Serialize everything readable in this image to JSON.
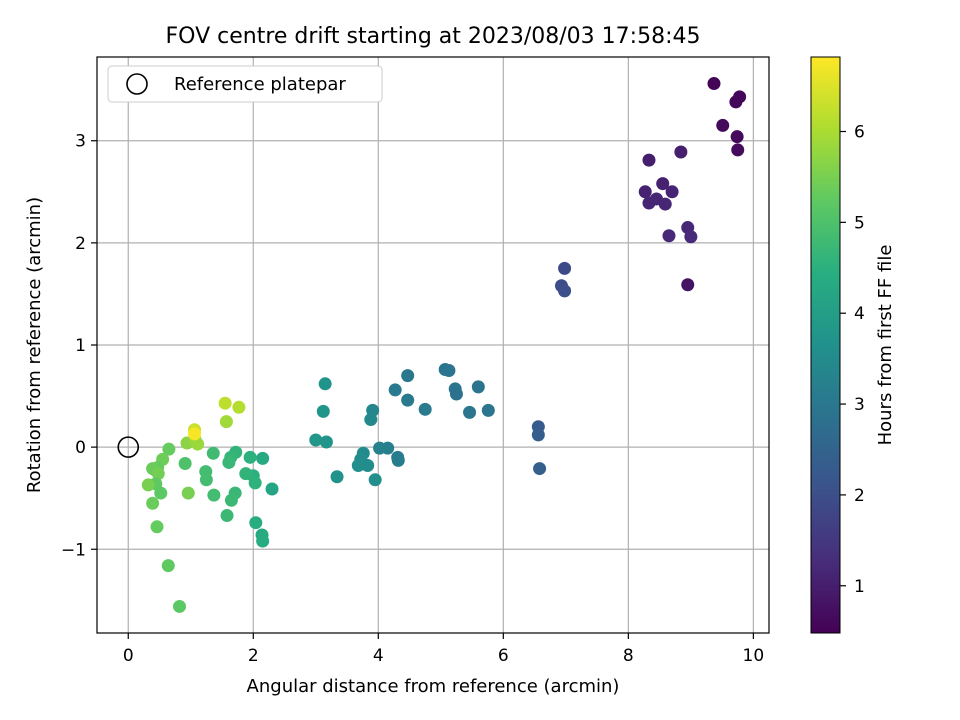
{
  "chart_data": {
    "type": "scatter",
    "title": "FOV centre drift starting at 2023/08/03 17:58:45",
    "xlabel": "Angular distance from reference (arcmin)",
    "ylabel": "Rotation from reference (arcmin)",
    "xlim": [
      -0.5,
      10.25
    ],
    "ylim": [
      -1.82,
      3.82
    ],
    "xticks": [
      0,
      2,
      4,
      6,
      8,
      10
    ],
    "xtick_labels": [
      "0",
      "2",
      "4",
      "6",
      "8",
      "10"
    ],
    "yticks": [
      -1,
      0,
      1,
      2,
      3
    ],
    "ytick_labels": [
      "−1",
      "0",
      "1",
      "2",
      "3"
    ],
    "grid": true,
    "legend": {
      "position": "top-left",
      "label": "Reference platepar"
    },
    "reference_point": {
      "x": 0,
      "y": 0
    },
    "colorbar": {
      "label": "Hours from first FF file",
      "colormap": "viridis",
      "range": [
        0.48,
        6.82
      ],
      "ticks": [
        1,
        2,
        3,
        4,
        5,
        6
      ],
      "tick_labels": [
        "1",
        "2",
        "3",
        "4",
        "5",
        "6"
      ]
    },
    "points": [
      {
        "x": 9.37,
        "y": 3.56,
        "c": 0.55
      },
      {
        "x": 9.78,
        "y": 3.43,
        "c": 0.58
      },
      {
        "x": 9.72,
        "y": 3.38,
        "c": 0.6
      },
      {
        "x": 9.51,
        "y": 3.15,
        "c": 0.62
      },
      {
        "x": 9.74,
        "y": 3.04,
        "c": 0.64
      },
      {
        "x": 9.75,
        "y": 2.91,
        "c": 0.66
      },
      {
        "x": 8.33,
        "y": 2.81,
        "c": 1.0
      },
      {
        "x": 8.84,
        "y": 2.89,
        "c": 1.02
      },
      {
        "x": 8.55,
        "y": 2.58,
        "c": 1.05
      },
      {
        "x": 8.27,
        "y": 2.5,
        "c": 1.08
      },
      {
        "x": 8.7,
        "y": 2.5,
        "c": 1.1
      },
      {
        "x": 8.45,
        "y": 2.43,
        "c": 1.12
      },
      {
        "x": 8.33,
        "y": 2.39,
        "c": 1.14
      },
      {
        "x": 8.59,
        "y": 2.38,
        "c": 1.16
      },
      {
        "x": 8.95,
        "y": 2.15,
        "c": 1.18
      },
      {
        "x": 8.65,
        "y": 2.07,
        "c": 1.2
      },
      {
        "x": 9.0,
        "y": 2.06,
        "c": 1.22
      },
      {
        "x": 8.95,
        "y": 1.59,
        "c": 0.8
      },
      {
        "x": 6.98,
        "y": 1.75,
        "c": 1.9
      },
      {
        "x": 6.93,
        "y": 1.58,
        "c": 1.95
      },
      {
        "x": 6.98,
        "y": 1.53,
        "c": 2.0
      },
      {
        "x": 6.56,
        "y": 0.2,
        "c": 2.3
      },
      {
        "x": 6.56,
        "y": 0.12,
        "c": 2.35
      },
      {
        "x": 6.58,
        "y": -0.21,
        "c": 2.4
      },
      {
        "x": 5.07,
        "y": 0.76,
        "c": 2.9
      },
      {
        "x": 5.13,
        "y": 0.75,
        "c": 2.95
      },
      {
        "x": 5.23,
        "y": 0.57,
        "c": 2.9
      },
      {
        "x": 5.25,
        "y": 0.52,
        "c": 2.85
      },
      {
        "x": 5.6,
        "y": 0.59,
        "c": 2.9
      },
      {
        "x": 5.46,
        "y": 0.34,
        "c": 2.95
      },
      {
        "x": 5.76,
        "y": 0.36,
        "c": 2.95
      },
      {
        "x": 4.47,
        "y": 0.7,
        "c": 3.0
      },
      {
        "x": 4.27,
        "y": 0.56,
        "c": 3.05
      },
      {
        "x": 4.47,
        "y": 0.46,
        "c": 3.05
      },
      {
        "x": 4.75,
        "y": 0.37,
        "c": 3.1
      },
      {
        "x": 4.31,
        "y": -0.1,
        "c": 3.1
      },
      {
        "x": 4.32,
        "y": -0.13,
        "c": 3.15
      },
      {
        "x": 4.15,
        "y": -0.01,
        "c": 3.2
      },
      {
        "x": 4.02,
        "y": -0.01,
        "c": 3.25
      },
      {
        "x": 3.91,
        "y": 0.36,
        "c": 3.4
      },
      {
        "x": 3.88,
        "y": 0.27,
        "c": 3.45
      },
      {
        "x": 3.76,
        "y": -0.06,
        "c": 3.5
      },
      {
        "x": 3.72,
        "y": -0.12,
        "c": 3.55
      },
      {
        "x": 3.68,
        "y": -0.18,
        "c": 3.6
      },
      {
        "x": 3.83,
        "y": -0.18,
        "c": 3.55
      },
      {
        "x": 3.95,
        "y": -0.32,
        "c": 3.6
      },
      {
        "x": 3.15,
        "y": 0.62,
        "c": 3.7
      },
      {
        "x": 3.12,
        "y": 0.35,
        "c": 3.75
      },
      {
        "x": 3.0,
        "y": 0.07,
        "c": 3.8
      },
      {
        "x": 3.17,
        "y": 0.05,
        "c": 3.75
      },
      {
        "x": 3.34,
        "y": -0.29,
        "c": 3.7
      },
      {
        "x": 2.3,
        "y": -0.41,
        "c": 4.2
      },
      {
        "x": 2.15,
        "y": -0.11,
        "c": 4.3
      },
      {
        "x": 2.14,
        "y": -0.86,
        "c": 4.3
      },
      {
        "x": 2.15,
        "y": -0.92,
        "c": 4.35
      },
      {
        "x": 2.04,
        "y": -0.74,
        "c": 4.4
      },
      {
        "x": 1.95,
        "y": -0.1,
        "c": 4.5
      },
      {
        "x": 2.0,
        "y": -0.28,
        "c": 4.5
      },
      {
        "x": 2.03,
        "y": -0.35,
        "c": 4.55
      },
      {
        "x": 1.88,
        "y": -0.26,
        "c": 4.6
      },
      {
        "x": 1.72,
        "y": -0.05,
        "c": 4.6
      },
      {
        "x": 1.64,
        "y": -0.1,
        "c": 4.65
      },
      {
        "x": 1.61,
        "y": -0.15,
        "c": 4.7
      },
      {
        "x": 1.71,
        "y": -0.45,
        "c": 4.7
      },
      {
        "x": 1.65,
        "y": -0.52,
        "c": 4.75
      },
      {
        "x": 1.58,
        "y": -0.67,
        "c": 4.75
      },
      {
        "x": 1.36,
        "y": -0.06,
        "c": 4.8
      },
      {
        "x": 1.24,
        "y": -0.24,
        "c": 4.85
      },
      {
        "x": 1.25,
        "y": -0.32,
        "c": 4.85
      },
      {
        "x": 1.37,
        "y": -0.47,
        "c": 4.85
      },
      {
        "x": 0.91,
        "y": -0.16,
        "c": 5.0
      },
      {
        "x": 0.65,
        "y": -0.02,
        "c": 5.3
      },
      {
        "x": 0.55,
        "y": -0.12,
        "c": 5.4
      },
      {
        "x": 0.47,
        "y": -0.2,
        "c": 5.3
      },
      {
        "x": 0.42,
        "y": -0.22,
        "c": 5.2
      },
      {
        "x": 0.39,
        "y": -0.21,
        "c": 5.35
      },
      {
        "x": 0.48,
        "y": -0.26,
        "c": 5.45
      },
      {
        "x": 0.44,
        "y": -0.36,
        "c": 5.25
      },
      {
        "x": 0.32,
        "y": -0.37,
        "c": 5.5
      },
      {
        "x": 0.52,
        "y": -0.45,
        "c": 5.2
      },
      {
        "x": 0.39,
        "y": -0.55,
        "c": 5.35
      },
      {
        "x": 0.46,
        "y": -0.78,
        "c": 5.3
      },
      {
        "x": 0.64,
        "y": -1.16,
        "c": 5.25
      },
      {
        "x": 0.82,
        "y": -1.56,
        "c": 5.2
      },
      {
        "x": 0.96,
        "y": -0.45,
        "c": 5.5
      },
      {
        "x": 0.94,
        "y": 0.04,
        "c": 5.7
      },
      {
        "x": 1.07,
        "y": 0.07,
        "c": 5.8
      },
      {
        "x": 1.11,
        "y": 0.03,
        "c": 5.85
      },
      {
        "x": 1.57,
        "y": 0.25,
        "c": 5.9
      },
      {
        "x": 1.77,
        "y": 0.39,
        "c": 6.1
      },
      {
        "x": 1.55,
        "y": 0.43,
        "c": 6.2
      },
      {
        "x": 1.06,
        "y": 0.17,
        "c": 6.3
      },
      {
        "x": 1.06,
        "y": 0.13,
        "c": 6.75
      }
    ]
  }
}
